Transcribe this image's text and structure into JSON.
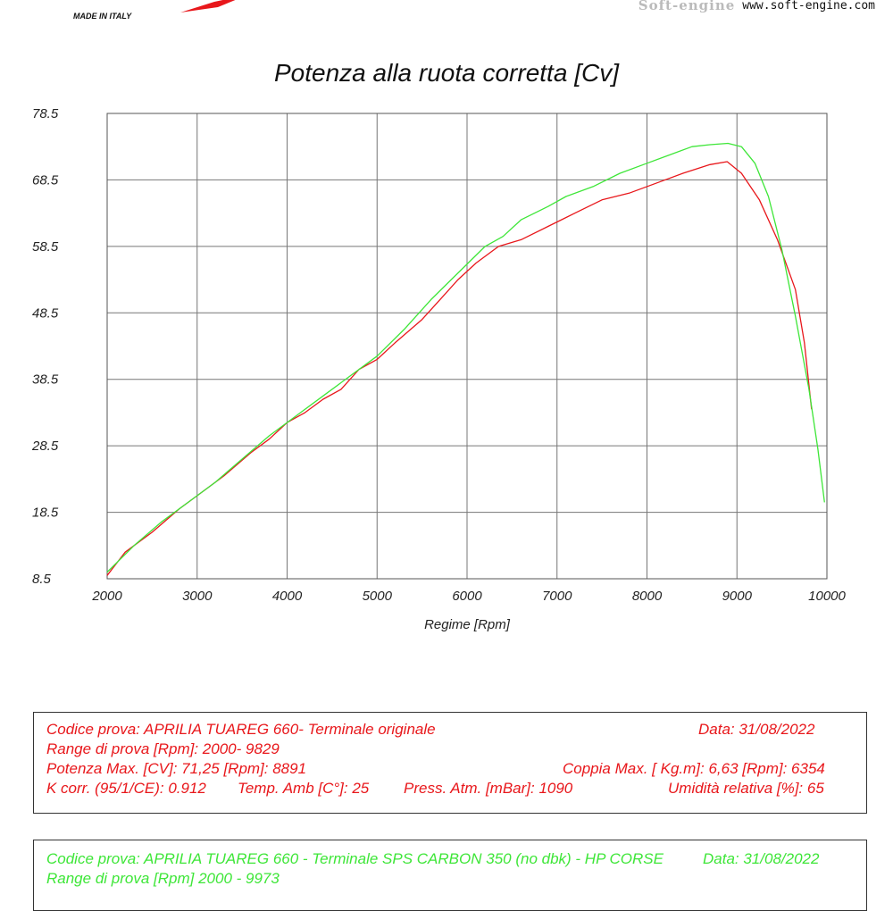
{
  "header": {
    "brand_logo": "",
    "made_in": "MADE IN ITALY",
    "right_logo": "Soft-engine",
    "right_url": "www.soft-engine.com"
  },
  "chart_data": {
    "type": "line",
    "title": "Potenza alla ruota corretta [Cv]",
    "xlabel": "Regime [Rpm]",
    "ylabel": "",
    "xlim": [
      2000,
      10000
    ],
    "ylim": [
      8.5,
      78.5
    ],
    "xticks": [
      "2000",
      "3000",
      "4000",
      "5000",
      "6000",
      "7000",
      "8000",
      "9000",
      "10000"
    ],
    "yticks": [
      "8.5",
      "18.5",
      "28.5",
      "38.5",
      "48.5",
      "58.5",
      "68.5",
      "78.5"
    ],
    "grid": true,
    "colors": {
      "red": "#e8171b",
      "green": "#3ee638"
    },
    "series": [
      {
        "color": "#e8171b",
        "x": [
          2000,
          2200,
          2500,
          2800,
          3000,
          3300,
          3600,
          3800,
          4000,
          4200,
          4400,
          4600,
          4800,
          5000,
          5200,
          5500,
          5700,
          5900,
          6100,
          6350,
          6600,
          6900,
          7200,
          7500,
          7800,
          8100,
          8400,
          8700,
          8891,
          9050,
          9250,
          9450,
          9650,
          9750,
          9829
        ],
        "y": [
          9.0,
          12.5,
          15.5,
          19.0,
          21.0,
          24.0,
          27.5,
          29.5,
          32.0,
          33.5,
          35.5,
          37.0,
          40.0,
          41.5,
          44.0,
          47.5,
          50.5,
          53.5,
          56.0,
          58.5,
          59.5,
          61.5,
          63.5,
          65.5,
          66.5,
          68.0,
          69.5,
          70.8,
          71.25,
          69.5,
          65.5,
          59.5,
          52.0,
          44.0,
          34.0
        ]
      },
      {
        "color": "#3ee638",
        "x": [
          2000,
          2300,
          2600,
          2900,
          3200,
          3500,
          3800,
          4100,
          4400,
          4700,
          5000,
          5300,
          5600,
          5900,
          6200,
          6400,
          6600,
          6900,
          7100,
          7400,
          7700,
          8000,
          8200,
          8500,
          8700,
          8900,
          9050,
          9200,
          9350,
          9500,
          9650,
          9800,
          9900,
          9973
        ],
        "y": [
          9.5,
          13.5,
          17.0,
          20.0,
          23.0,
          26.5,
          30.0,
          33.0,
          36.0,
          39.0,
          42.0,
          46.0,
          50.5,
          54.5,
          58.5,
          60.0,
          62.5,
          64.5,
          66.0,
          67.5,
          69.5,
          71.0,
          72.0,
          73.5,
          73.8,
          74.0,
          73.5,
          71.0,
          66.0,
          58.0,
          48.0,
          37.0,
          28.0,
          20.0
        ]
      }
    ]
  },
  "test_red": {
    "code": "Codice prova: APRILIA TUAREG 660- Terminale originale",
    "date": "Data: 31/08/2022",
    "range": "Range di prova [Rpm]: 2000- 9829",
    "power": "Potenza Max. [CV]: 71,25 [Rpm]: 8891",
    "torque": "Coppia Max. [ Kg.m]: 6,63 [Rpm]: 6354",
    "kcorr": "K corr. (95/1/CE): 0.912",
    "temp": "Temp. Amb [C°]: 25",
    "press": "Press. Atm. [mBar]: 1090",
    "humidity": "Umidità relativa [%]: 65"
  },
  "test_green": {
    "code": "Codice prova: APRILIA TUAREG 660 - Terminale SPS CARBON 350 (no dbk) - HP CORSE",
    "date": "Data: 31/08/2022",
    "range": "Range di prova [Rpm] 2000 - 9973"
  }
}
